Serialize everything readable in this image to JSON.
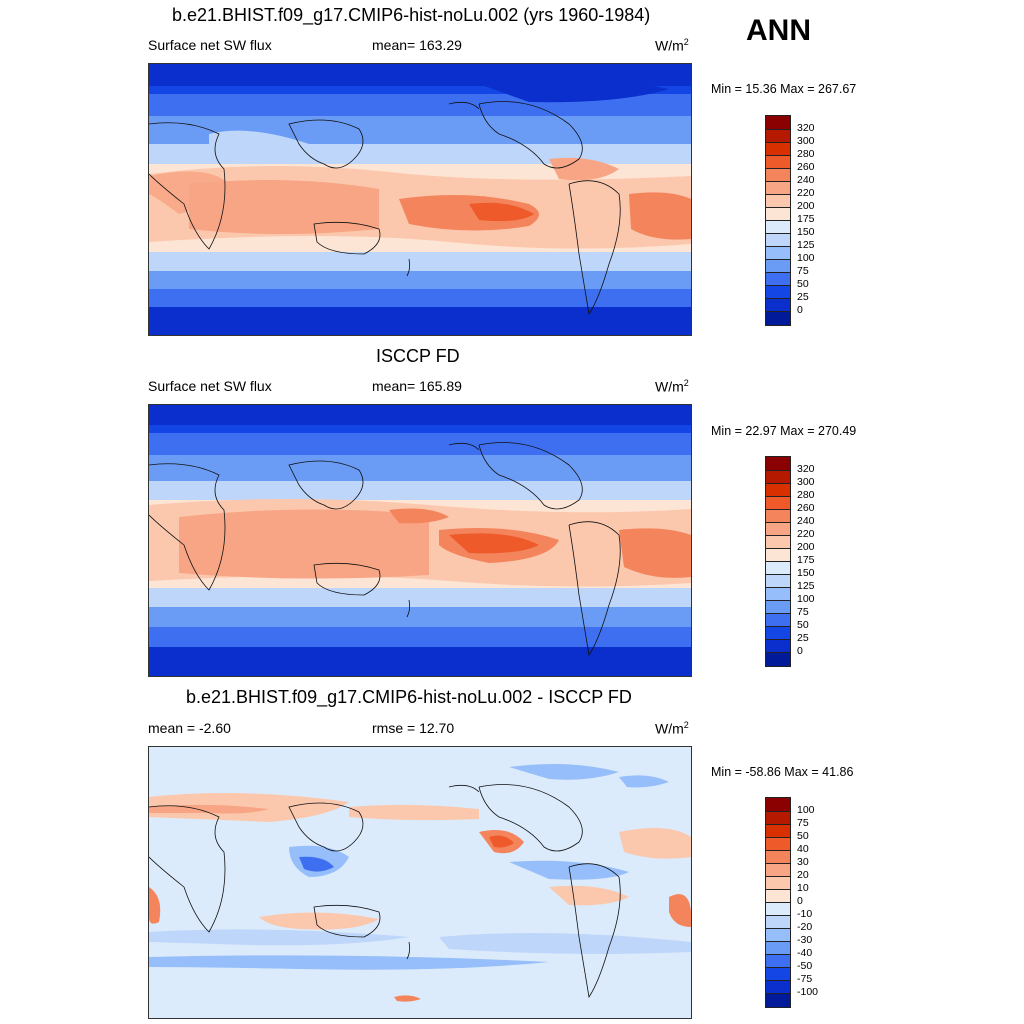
{
  "header": {
    "title": "b.e21.BHIST.f09_g17.CMIP6-hist-noLu.002 (yrs 1960-1984)",
    "season": "ANN"
  },
  "panels": [
    {
      "title": "",
      "left_label": "Surface net SW flux",
      "center_label": "mean= 163.29",
      "units": "W/m",
      "units_sup": "2",
      "minmax": "Min =  15.36 Max = 267.67"
    },
    {
      "title": "ISCCP FD",
      "left_label": "Surface net SW flux",
      "center_label": "mean= 165.89",
      "units": "W/m",
      "units_sup": "2",
      "minmax": "Min =  22.97 Max = 270.49"
    },
    {
      "title": "b.e21.BHIST.f09_g17.CMIP6-hist-noLu.002 - ISCCP FD",
      "left_label": "mean =  -2.60",
      "center_label": "rmse =  12.70",
      "units": "W/m",
      "units_sup": "2",
      "minmax": "Min = -58.86 Max =  41.86"
    }
  ],
  "colorbars": {
    "abs_levels": [
      "320",
      "300",
      "280",
      "260",
      "240",
      "220",
      "200",
      "175",
      "150",
      "125",
      "100",
      "75",
      "50",
      "25",
      "0"
    ],
    "diff_levels": [
      "100",
      "75",
      "50",
      "40",
      "30",
      "20",
      "10",
      "0",
      "-10",
      "-20",
      "-30",
      "-40",
      "-50",
      "-75",
      "-100"
    ],
    "abs_colors": [
      "#8b0000",
      "#b51a00",
      "#d93000",
      "#ee5a2a",
      "#f4845c",
      "#f7a584",
      "#fbc8ae",
      "#fde5d6",
      "#dcebfb",
      "#bdd6fa",
      "#96befa",
      "#6b9cf5",
      "#3d6ff0",
      "#1446e6",
      "#0a2fcc",
      "#001a99"
    ],
    "diff_colors": [
      "#8b0000",
      "#b51a00",
      "#d93000",
      "#ee5a2a",
      "#f4845c",
      "#f7a584",
      "#fbc8ae",
      "#fde5d6",
      "#dcebfb",
      "#bdd6fa",
      "#96befa",
      "#6b9cf5",
      "#3d6ff0",
      "#1446e6",
      "#0a2fcc",
      "#001a99"
    ]
  }
}
